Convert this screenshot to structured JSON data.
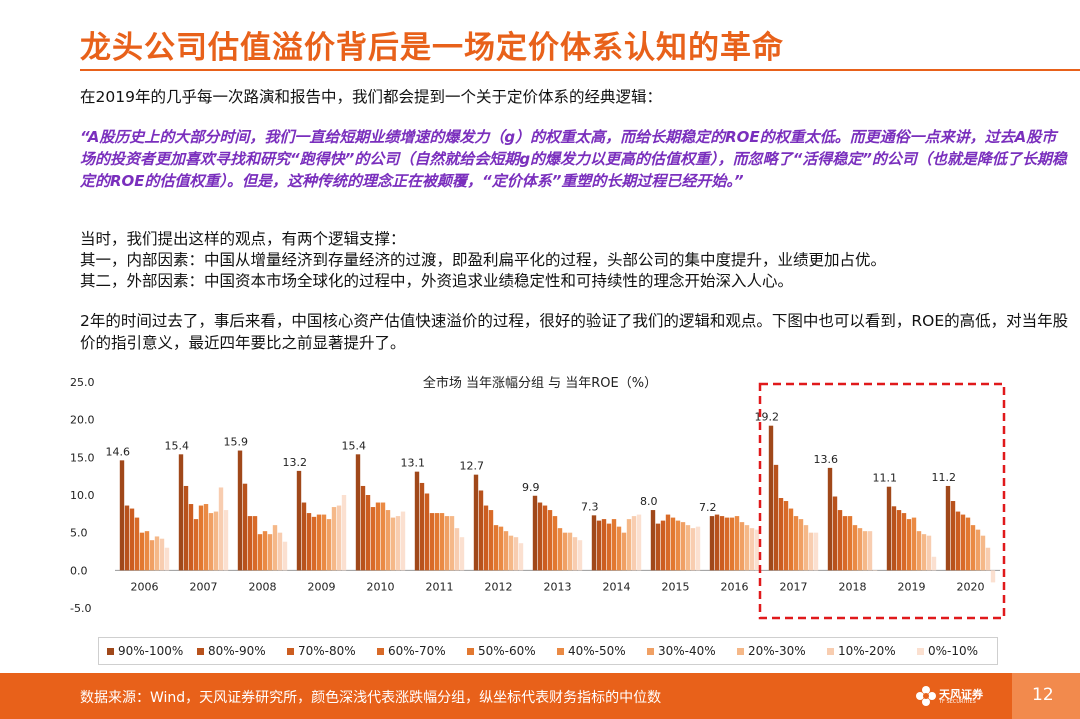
{
  "page": {
    "title": "龙头公司估值溢价背后是一场定价体系认知的革命",
    "intro": "在2019年的几乎每一次路演和报告中，我们都会提到一个关于定价体系的经典逻辑：",
    "quote": "“A股历史上的大部分时间，我们一直给短期业绩增速的爆发力（g）的权重太高，而给长期稳定的ROE的权重太低。而更通俗一点来讲，过去A股市场的投资者更加喜欢寻找和研究“跑得快”的公司（自然就给会短期g的爆发力以更高的估值权重），而忽略了“活得稳定”的公司（也就是降低了长期稳定的ROE的估值权重）。但是，这种传统的理念正在被颠覆，“定价体系”重塑的长期过程已经开始。”",
    "point_intro": "当时，我们提出这样的观点，有两个逻辑支撑：",
    "point1": "其一，内部因素：中国从增量经济到存量经济的过渡，即盈利扁平化的过程，头部公司的集中度提升，业绩更加占优。",
    "point2": "其二，外部因素：中国资本市场全球化的过程中，外资追求业绩稳定性和可持续性的理念开始深入人心。",
    "conclusion": "2年的时间过去了，事后来看，中国核心资产估值快速溢价的过程，很好的验证了我们的逻辑和观点。下图中也可以看到，ROE的高低，对当年股价的指引意义，最近四年要比之前显著提升了。"
  },
  "chart_data": {
    "type": "bar",
    "title": "全市场  当年涨幅分组  与  当年ROE（%）",
    "categories": [
      "2006",
      "2007",
      "2008",
      "2009",
      "2010",
      "2011",
      "2012",
      "2013",
      "2014",
      "2015",
      "2016",
      "2017",
      "2018",
      "2019",
      "2020"
    ],
    "ylim": [
      -5,
      25
    ],
    "yticks": [
      "-5.0",
      "0.0",
      "5.0",
      "10.0",
      "15.0",
      "20.0",
      "25.0"
    ],
    "highlight": [
      "2017",
      "2018",
      "2019",
      "2020"
    ],
    "top_labels": [
      "14.6",
      "15.4",
      "15.9",
      "13.2",
      "15.4",
      "13.1",
      "12.7",
      "9.9",
      "7.3",
      "8.0",
      "7.2",
      "19.2",
      "13.6",
      "11.1",
      "11.2"
    ],
    "series": [
      {
        "name": "90%-100%",
        "color": "#a0481a",
        "values": [
          14.6,
          15.4,
          15.9,
          13.2,
          15.4,
          13.1,
          12.7,
          9.9,
          7.3,
          8.0,
          7.2,
          19.2,
          13.6,
          11.1,
          11.2
        ]
      },
      {
        "name": "80%-90%",
        "color": "#b8521c",
        "values": [
          8.6,
          11.2,
          11.5,
          9.0,
          11.2,
          11.6,
          10.6,
          9.0,
          6.6,
          6.2,
          7.4,
          14.0,
          9.8,
          8.5,
          9.2
        ]
      },
      {
        "name": "70%-80%",
        "color": "#cc5d20",
        "values": [
          8.2,
          8.8,
          7.2,
          7.6,
          10.0,
          10.2,
          8.6,
          8.6,
          6.8,
          6.6,
          7.2,
          9.6,
          8.0,
          8.0,
          7.8
        ]
      },
      {
        "name": "60%-70%",
        "color": "#d86a28",
        "values": [
          7.0,
          6.8,
          7.2,
          7.1,
          8.4,
          7.6,
          8.0,
          8.0,
          6.2,
          7.4,
          7.0,
          9.2,
          7.2,
          7.6,
          7.4
        ]
      },
      {
        "name": "50%-60%",
        "color": "#e27830",
        "values": [
          5.0,
          8.6,
          4.8,
          7.4,
          9.0,
          7.6,
          6.0,
          7.2,
          6.8,
          7.0,
          7.0,
          8.2,
          7.2,
          6.8,
          7.0
        ]
      },
      {
        "name": "40%-50%",
        "color": "#ea8a44",
        "values": [
          5.2,
          8.8,
          5.2,
          7.4,
          9.0,
          7.6,
          5.8,
          5.6,
          5.8,
          6.6,
          7.2,
          7.2,
          6.0,
          7.0,
          6.0
        ]
      },
      {
        "name": "30%-40%",
        "color": "#f0a064",
        "values": [
          4.0,
          7.6,
          4.8,
          6.8,
          8.0,
          7.2,
          5.2,
          5.0,
          5.0,
          6.4,
          6.4,
          6.8,
          5.6,
          5.2,
          5.4
        ]
      },
      {
        "name": "20%-30%",
        "color": "#f5b888",
        "values": [
          4.5,
          7.8,
          6.0,
          8.4,
          7.0,
          7.2,
          4.6,
          5.0,
          6.8,
          6.0,
          6.0,
          6.0,
          5.2,
          4.8,
          4.6
        ]
      },
      {
        "name": "10%-20%",
        "color": "#f8cdb0",
        "values": [
          4.2,
          11.0,
          5.0,
          8.6,
          7.2,
          5.6,
          4.4,
          4.4,
          7.2,
          5.6,
          5.6,
          5.0,
          5.2,
          4.6,
          3.0
        ]
      },
      {
        "name": "0%-10%",
        "color": "#fbe0d0",
        "values": [
          3.0,
          8.0,
          3.8,
          10.0,
          7.8,
          4.4,
          3.6,
          4.0,
          7.4,
          5.8,
          5.4,
          5.0,
          0.0,
          1.8,
          -1.6
        ]
      }
    ]
  },
  "footer": {
    "source": "数据来源：Wind，天风证券研究所，颜色深浅代表涨跌幅分组，纵坐标代表财务指标的中位数",
    "logo_text": "天风证券",
    "logo_sub": "TF SECURITIES",
    "page_number": "12"
  }
}
